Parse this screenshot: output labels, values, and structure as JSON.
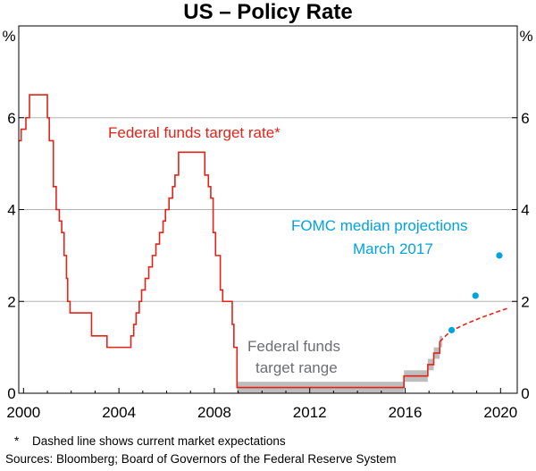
{
  "chart_data": {
    "type": "line",
    "title": "US – Policy Rate",
    "ylabel_left": "%",
    "ylabel_right": "%",
    "xlim": [
      1999.8,
      2020.7
    ],
    "ylim": [
      0,
      8
    ],
    "x_ticks": [
      2000,
      2004,
      2008,
      2012,
      2016,
      2020
    ],
    "y_ticks": [
      0,
      2,
      4,
      6
    ],
    "gridlines": [
      2,
      4,
      6
    ],
    "colors": {
      "target_rate": "#e2231a",
      "range_band": "#bdbdbd",
      "projections": "#00a3e0",
      "axis": "#000000",
      "grid": "#b3b3b3",
      "annotation_range": "#6d6e71"
    },
    "series": [
      {
        "name": "Federal funds target rate*",
        "color": "#e2231a",
        "step": true,
        "points": [
          [
            1999.8,
            5.5
          ],
          [
            1999.9,
            5.75
          ],
          [
            2000.1,
            6.0
          ],
          [
            2000.25,
            6.5
          ],
          [
            2000.8,
            6.5
          ],
          [
            2001.0,
            6.0
          ],
          [
            2001.08,
            5.5
          ],
          [
            2001.25,
            4.5
          ],
          [
            2001.37,
            4.0
          ],
          [
            2001.5,
            3.75
          ],
          [
            2001.6,
            3.5
          ],
          [
            2001.7,
            3.0
          ],
          [
            2001.8,
            2.5
          ],
          [
            2001.85,
            2.0
          ],
          [
            2001.95,
            1.75
          ],
          [
            2002.85,
            1.25
          ],
          [
            2003.5,
            1.0
          ],
          [
            2004.5,
            1.25
          ],
          [
            2004.62,
            1.5
          ],
          [
            2004.72,
            1.75
          ],
          [
            2004.85,
            2.0
          ],
          [
            2004.95,
            2.25
          ],
          [
            2005.1,
            2.5
          ],
          [
            2005.25,
            2.75
          ],
          [
            2005.4,
            3.0
          ],
          [
            2005.55,
            3.25
          ],
          [
            2005.7,
            3.5
          ],
          [
            2005.85,
            3.75
          ],
          [
            2005.95,
            4.0
          ],
          [
            2006.1,
            4.25
          ],
          [
            2006.25,
            4.5
          ],
          [
            2006.35,
            4.75
          ],
          [
            2006.5,
            5.25
          ],
          [
            2007.6,
            4.75
          ],
          [
            2007.75,
            4.5
          ],
          [
            2007.85,
            4.25
          ],
          [
            2007.95,
            3.5
          ],
          [
            2008.05,
            3.0
          ],
          [
            2008.25,
            2.25
          ],
          [
            2008.35,
            2.0
          ],
          [
            2008.75,
            1.5
          ],
          [
            2008.82,
            1.0
          ],
          [
            2008.95,
            0.125
          ],
          [
            2015.95,
            0.375
          ],
          [
            2016.95,
            0.625
          ],
          [
            2017.2,
            0.875
          ],
          [
            2017.45,
            1.125
          ]
        ]
      },
      {
        "name": "Market expectations (dashed)",
        "color": "#e2231a",
        "dashed": true,
        "points": [
          [
            2017.45,
            1.125
          ],
          [
            2017.9,
            1.35
          ],
          [
            2018.5,
            1.5
          ],
          [
            2019.2,
            1.65
          ],
          [
            2019.9,
            1.78
          ],
          [
            2020.3,
            1.85
          ]
        ]
      },
      {
        "name": "Federal funds target range",
        "type": "band",
        "color": "#bdbdbd",
        "segments": [
          {
            "x": [
              2008.95,
              2015.95
            ],
            "range": [
              0,
              0.25
            ]
          },
          {
            "x": [
              2015.95,
              2016.95
            ],
            "range": [
              0.25,
              0.5
            ]
          },
          {
            "x": [
              2016.95,
              2017.2
            ],
            "range": [
              0.5,
              0.75
            ]
          },
          {
            "x": [
              2017.2,
              2017.45
            ],
            "range": [
              0.75,
              1.0
            ]
          },
          {
            "x": [
              2017.45,
              2017.55
            ],
            "range": [
              1.0,
              1.25
            ]
          }
        ]
      },
      {
        "name": "FOMC median projections March 2017",
        "type": "scatter",
        "color": "#00a3e0",
        "points": [
          [
            2017.95,
            1.375
          ],
          [
            2018.95,
            2.125
          ],
          [
            2019.95,
            3.0
          ]
        ]
      }
    ],
    "annotations": {
      "target_rate": "Federal funds target rate*",
      "range_line1": "Federal funds",
      "range_line2": "target range",
      "fomc_line1": "FOMC median projections",
      "fomc_line2": "March 2017"
    }
  },
  "footnotes": {
    "star": "*",
    "note": "Dashed line shows current market expectations",
    "sources": "Sources: Bloomberg; Board of Governors of the Federal Reserve System"
  }
}
